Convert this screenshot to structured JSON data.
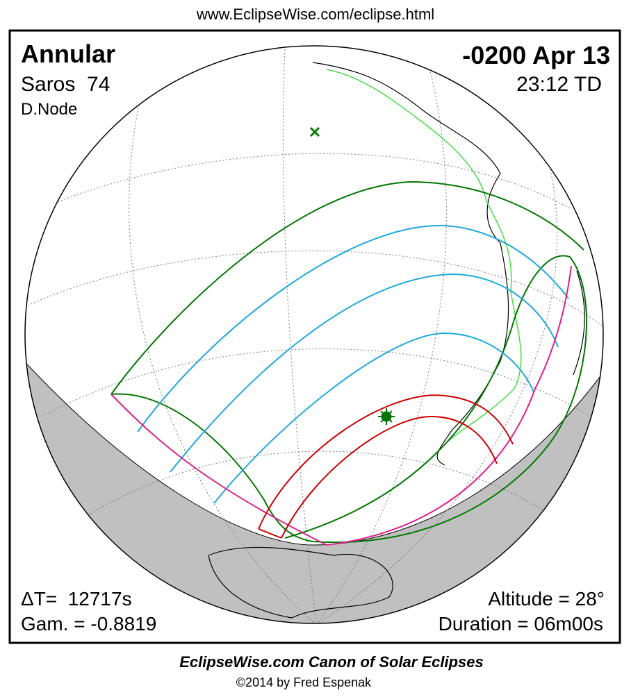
{
  "header": {
    "url": "www.EclipseWise.com/eclipse.html"
  },
  "eclipse": {
    "type": "Annular",
    "saros": "Saros  74",
    "node": "D.Node",
    "date": "-0200 Apr 13",
    "time": "23:12 TD",
    "delta_t": "ΔT=  12717s",
    "gamma": "Gam. = -0.8819",
    "altitude": "Altitude = 28°",
    "duration": "Duration = 06m00s"
  },
  "footer": {
    "title": "EclipseWise.com Canon of Solar Eclipses",
    "copyright": "©2014 by Fred Espenak"
  }
}
